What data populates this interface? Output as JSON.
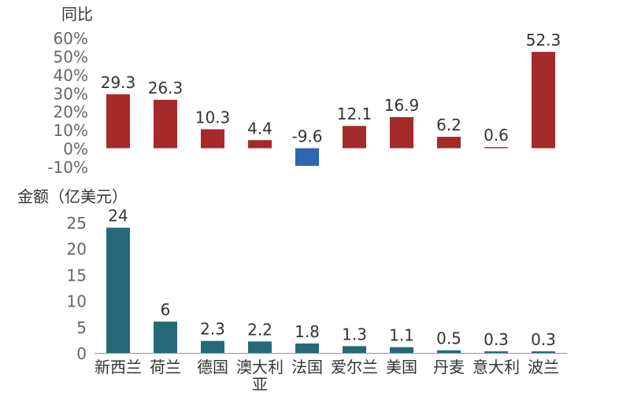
{
  "chart_data": [
    {
      "type": "bar",
      "ylabel": "同比",
      "categories": [
        "新西兰",
        "荷兰",
        "德国",
        "澳大利亚",
        "法国",
        "爱尔兰",
        "美国",
        "丹麦",
        "意大利",
        "波兰"
      ],
      "values": [
        29.3,
        26.3,
        10.3,
        4.4,
        -9.6,
        12.1,
        16.9,
        6.2,
        0.6,
        52.3
      ],
      "value_labels": [
        "29.3",
        "26.3",
        "10.3",
        "4.4",
        "-9.6",
        "12.1",
        "16.9",
        "6.2",
        "0.6",
        "52.3"
      ],
      "ylim": [
        -10,
        60
      ],
      "yticks": [
        60,
        50,
        40,
        30,
        20,
        10,
        0,
        -10
      ],
      "ytick_labels": [
        "60%",
        "50%",
        "40%",
        "30%",
        "20%",
        "10%",
        "0%",
        "-10%"
      ],
      "grid": false,
      "colors": {
        "positive": "#A52A2A",
        "negative": "#2E66B2"
      }
    },
    {
      "type": "bar",
      "ylabel": "金额（亿美元）",
      "categories": [
        "新西兰",
        "荷兰",
        "德国",
        "澳大利亚",
        "法国",
        "爱尔兰",
        "美国",
        "丹麦",
        "意大利",
        "波兰"
      ],
      "category_labels": [
        [
          "新西兰"
        ],
        [
          "荷兰"
        ],
        [
          "德国"
        ],
        [
          "澳大利",
          "亚"
        ],
        [
          "法国"
        ],
        [
          "爱尔兰"
        ],
        [
          "美国"
        ],
        [
          "丹麦"
        ],
        [
          "意大利"
        ],
        [
          "波兰"
        ]
      ],
      "values": [
        24,
        6,
        2.3,
        2.2,
        1.8,
        1.3,
        1.1,
        0.5,
        0.3,
        0.3
      ],
      "value_labels": [
        "24",
        "6",
        "2.3",
        "2.2",
        "1.8",
        "1.3",
        "1.1",
        "0.5",
        "0.3",
        "0.3"
      ],
      "ylim": [
        0,
        25
      ],
      "yticks": [
        25,
        20,
        15,
        10,
        5,
        0
      ],
      "ytick_labels": [
        "25",
        "20",
        "15",
        "10",
        "5",
        "0"
      ],
      "grid": false,
      "colors": {
        "bar": "#256978"
      }
    }
  ]
}
